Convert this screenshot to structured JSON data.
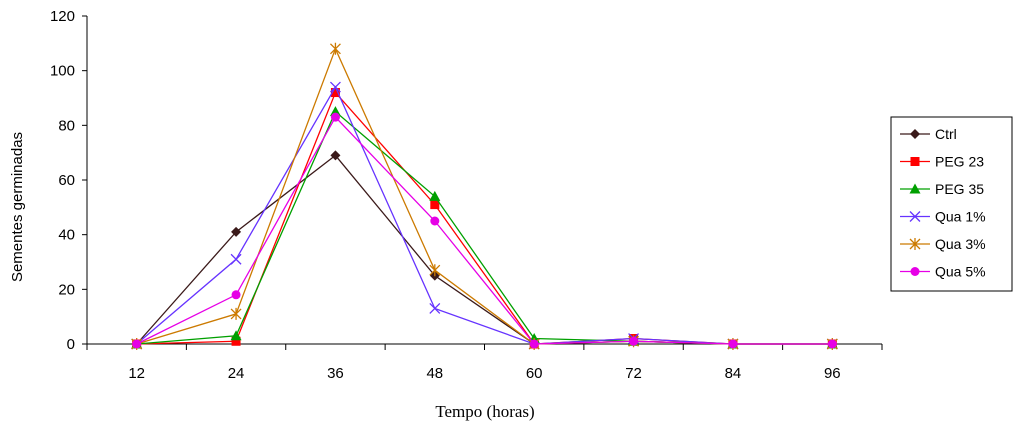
{
  "chart_data": {
    "type": "line",
    "xlabel": "Tempo (horas)",
    "ylabel": "Sementes germinadas",
    "ylim": [
      0,
      120
    ],
    "yticks": [
      "0",
      "20",
      "40",
      "60",
      "80",
      "100",
      "120"
    ],
    "categories": [
      "12",
      "24",
      "36",
      "48",
      "60",
      "72",
      "84",
      "96"
    ],
    "grid": false,
    "legend_position": "right",
    "series": [
      {
        "name": "Ctrl",
        "color": "#3b1a1a",
        "marker": "diamond",
        "values": [
          0,
          41,
          69,
          25,
          0,
          1,
          0,
          0
        ]
      },
      {
        "name": "PEG 23",
        "color": "#ff0000",
        "marker": "square",
        "values": [
          0,
          1,
          92,
          51,
          0,
          2,
          0,
          0
        ]
      },
      {
        "name": "PEG 35",
        "color": "#00a000",
        "marker": "triangle",
        "values": [
          0,
          3,
          85,
          54,
          2,
          1,
          0,
          0
        ]
      },
      {
        "name": "Qua 1%",
        "color": "#6633ff",
        "marker": "x",
        "values": [
          0,
          31,
          94,
          13,
          0,
          2,
          0,
          0
        ]
      },
      {
        "name": "Qua 3%",
        "color": "#cc7a00",
        "marker": "star",
        "values": [
          0,
          11,
          108,
          27,
          0,
          1,
          0,
          0
        ]
      },
      {
        "name": "Qua 5%",
        "color": "#e600e6",
        "marker": "circle",
        "values": [
          0,
          18,
          83,
          45,
          0,
          1,
          0,
          0
        ]
      }
    ]
  }
}
